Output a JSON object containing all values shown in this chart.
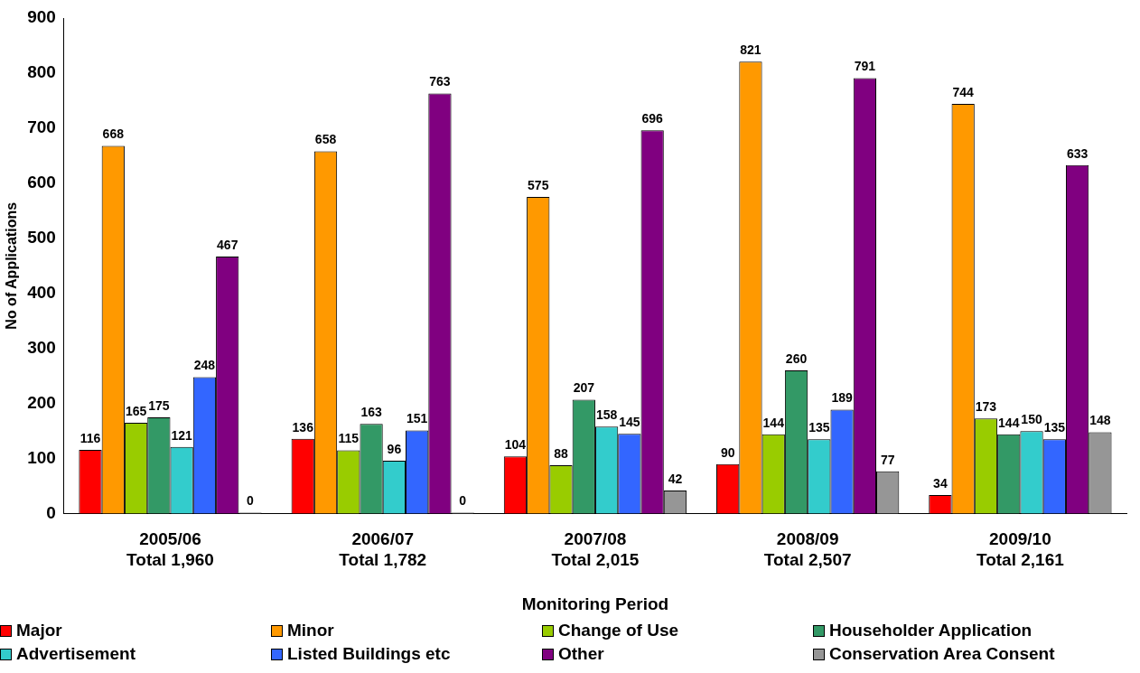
{
  "chart_data": {
    "type": "bar",
    "xlabel": "Monitoring Period",
    "ylabel": "No of Applications",
    "categories": [
      "2005/06\nTotal 1,960",
      "2006/07\nTotal 1,782",
      "2007/08\nTotal 2,015",
      "2008/09\nTotal 2,507",
      "2009/10\nTotal 2,161"
    ],
    "series": [
      {
        "name": "Major",
        "color": "#ff0000",
        "values": [
          116,
          136,
          104,
          90,
          34
        ]
      },
      {
        "name": "Minor",
        "color": "#ff9900",
        "values": [
          668,
          658,
          575,
          821,
          744
        ]
      },
      {
        "name": "Change of Use",
        "color": "#99cc00",
        "values": [
          165,
          115,
          88,
          144,
          173
        ]
      },
      {
        "name": "Householder Application",
        "color": "#339966",
        "values": [
          175,
          163,
          207,
          260,
          144
        ]
      },
      {
        "name": "Advertisement",
        "color": "#33cccc",
        "values": [
          121,
          96,
          158,
          135,
          150
        ]
      },
      {
        "name": "Listed Buildings etc",
        "color": "#3366ff",
        "values": [
          248,
          151,
          145,
          189,
          135
        ]
      },
      {
        "name": "Other",
        "color": "#800080",
        "values": [
          467,
          763,
          696,
          791,
          633
        ]
      },
      {
        "name": "Conservation Area Consent",
        "color": "#969696",
        "values": [
          0,
          0,
          42,
          77,
          148
        ]
      }
    ],
    "ylim": [
      0,
      900
    ],
    "yticks": [
      0,
      100,
      200,
      300,
      400,
      500,
      600,
      700,
      800,
      900
    ],
    "grid": false,
    "legend": "bottom",
    "data_labels": true
  }
}
